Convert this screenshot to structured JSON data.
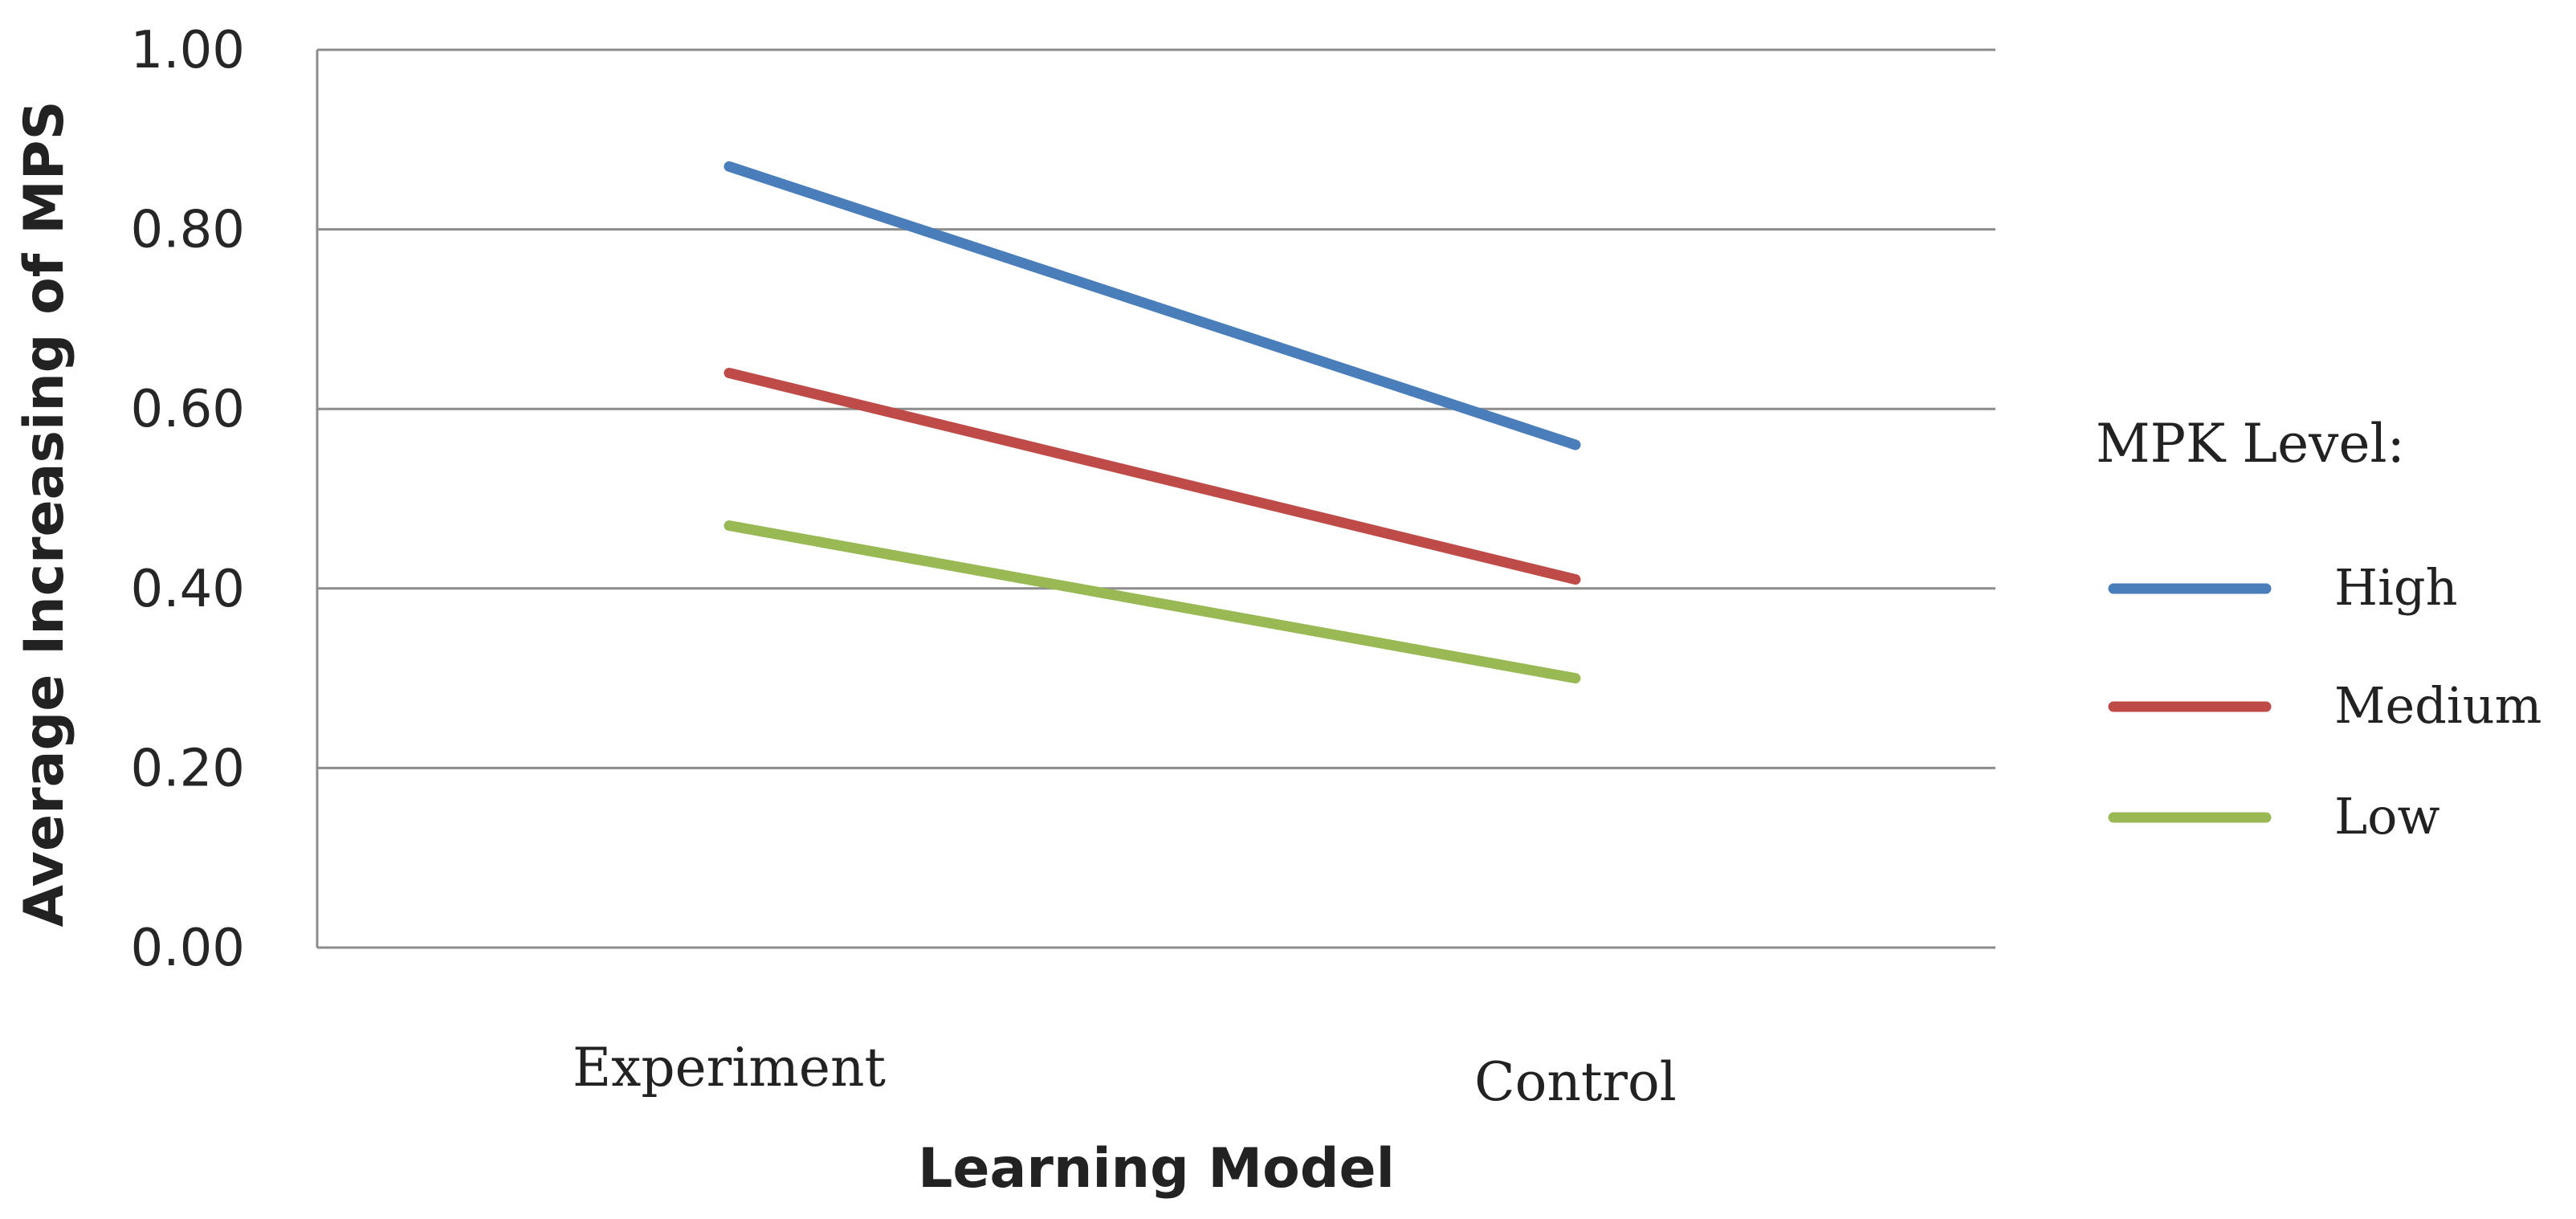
{
  "chart_data": {
    "type": "line",
    "title": "",
    "xlabel": "Learning Model",
    "ylabel": "Average Increasing of MPS",
    "categories": [
      "Experiment",
      "Control"
    ],
    "y_ticks": [
      "0.00",
      "0.20",
      "0.40",
      "0.60",
      "0.80",
      "1.00"
    ],
    "ylim": [
      0,
      1
    ],
    "grid": true,
    "legend": {
      "title": "MPK Level:",
      "placement": "right"
    },
    "series": [
      {
        "name": "High",
        "values": [
          0.87,
          0.56
        ],
        "color": "#4a7ebb"
      },
      {
        "name": "Medium",
        "values": [
          0.64,
          0.41
        ],
        "color": "#be4b48"
      },
      {
        "name": "Low",
        "values": [
          0.47,
          0.3
        ],
        "color": "#98b954"
      }
    ]
  }
}
